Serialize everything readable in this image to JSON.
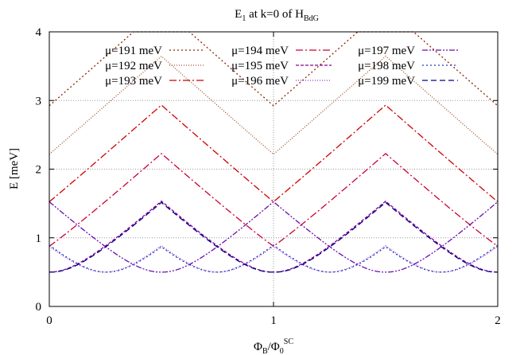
{
  "chart_data": {
    "type": "line",
    "title": "E",
    "title_sub": "1",
    "title_rest": " at k=0 of H",
    "title_sub2": "BdG",
    "xlabel_parts": {
      "a": "Φ",
      "a_sub": "B",
      "slash": "/Φ",
      "b_sub": "0",
      "b_sup": "SC"
    },
    "ylabel": "E [meV]",
    "xlim": [
      0,
      2
    ],
    "ylim": [
      0,
      4
    ],
    "xticks": [
      "0",
      "1",
      "2"
    ],
    "yticks": [
      "0",
      "1",
      "2",
      "3",
      "4"
    ],
    "grid": true,
    "legend_position": "top",
    "model": {
      "delta": 0.5,
      "base_mu": 195,
      "coef": 0.4
    },
    "series": [
      {
        "name": "μ=191 meV",
        "mu": 191,
        "color": "#8b2500",
        "dash": "2,3"
      },
      {
        "name": "μ=192 meV",
        "mu": 192,
        "color": "#a0522d",
        "dash": "1,2"
      },
      {
        "name": "μ=193 meV",
        "mu": 193,
        "color": "#cc0000",
        "dash": "9,3,2,3"
      },
      {
        "name": "μ=194 meV",
        "mu": 194,
        "color": "#cc0033",
        "dash": "9,3,2,3"
      },
      {
        "name": "μ=195 meV",
        "mu": 195,
        "color": "#8b008b",
        "dash": "4,2"
      },
      {
        "name": "μ=196 meV",
        "mu": 196,
        "color": "#9932cc",
        "dash": "1,2"
      },
      {
        "name": "μ=197 meV",
        "mu": 197,
        "color": "#6a0dad",
        "dash": "7,2,2,2,2,2"
      },
      {
        "name": "μ=198 meV",
        "mu": 198,
        "color": "#1e3cbf",
        "dash": "2,3"
      },
      {
        "name": "μ=199 meV",
        "mu": 199,
        "color": "#00008b",
        "dash": "7,4"
      }
    ]
  }
}
